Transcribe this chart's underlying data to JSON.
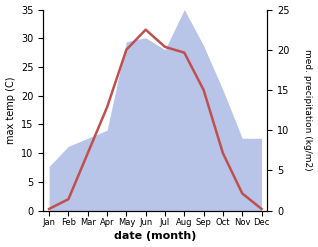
{
  "months": [
    "Jan",
    "Feb",
    "Mar",
    "Apr",
    "May",
    "Jun",
    "Jul",
    "Aug",
    "Sep",
    "Oct",
    "Nov",
    "Dec"
  ],
  "temperature": [
    0.3,
    2.0,
    10.0,
    18.0,
    28.0,
    31.5,
    28.5,
    27.5,
    21.0,
    10.0,
    3.0,
    0.3
  ],
  "precipitation": [
    5.5,
    8.0,
    9.0,
    10.0,
    21.0,
    21.5,
    20.0,
    25.0,
    20.5,
    15.0,
    9.0,
    9.0
  ],
  "temp_color": "#c0504d",
  "precip_fill_color": "#b8c4e8",
  "temp_ylim": [
    0,
    35
  ],
  "precip_ylim": [
    0,
    25
  ],
  "temp_yticks": [
    0,
    5,
    10,
    15,
    20,
    25,
    30,
    35
  ],
  "precip_yticks": [
    0,
    5,
    10,
    15,
    20,
    25
  ],
  "ylabel_left": "max temp (C)",
  "ylabel_right": "med. precipitation (kg/m2)",
  "xlabel": "date (month)",
  "background_color": "#ffffff",
  "temp_linewidth": 1.8,
  "figsize": [
    3.18,
    2.47
  ],
  "dpi": 100
}
